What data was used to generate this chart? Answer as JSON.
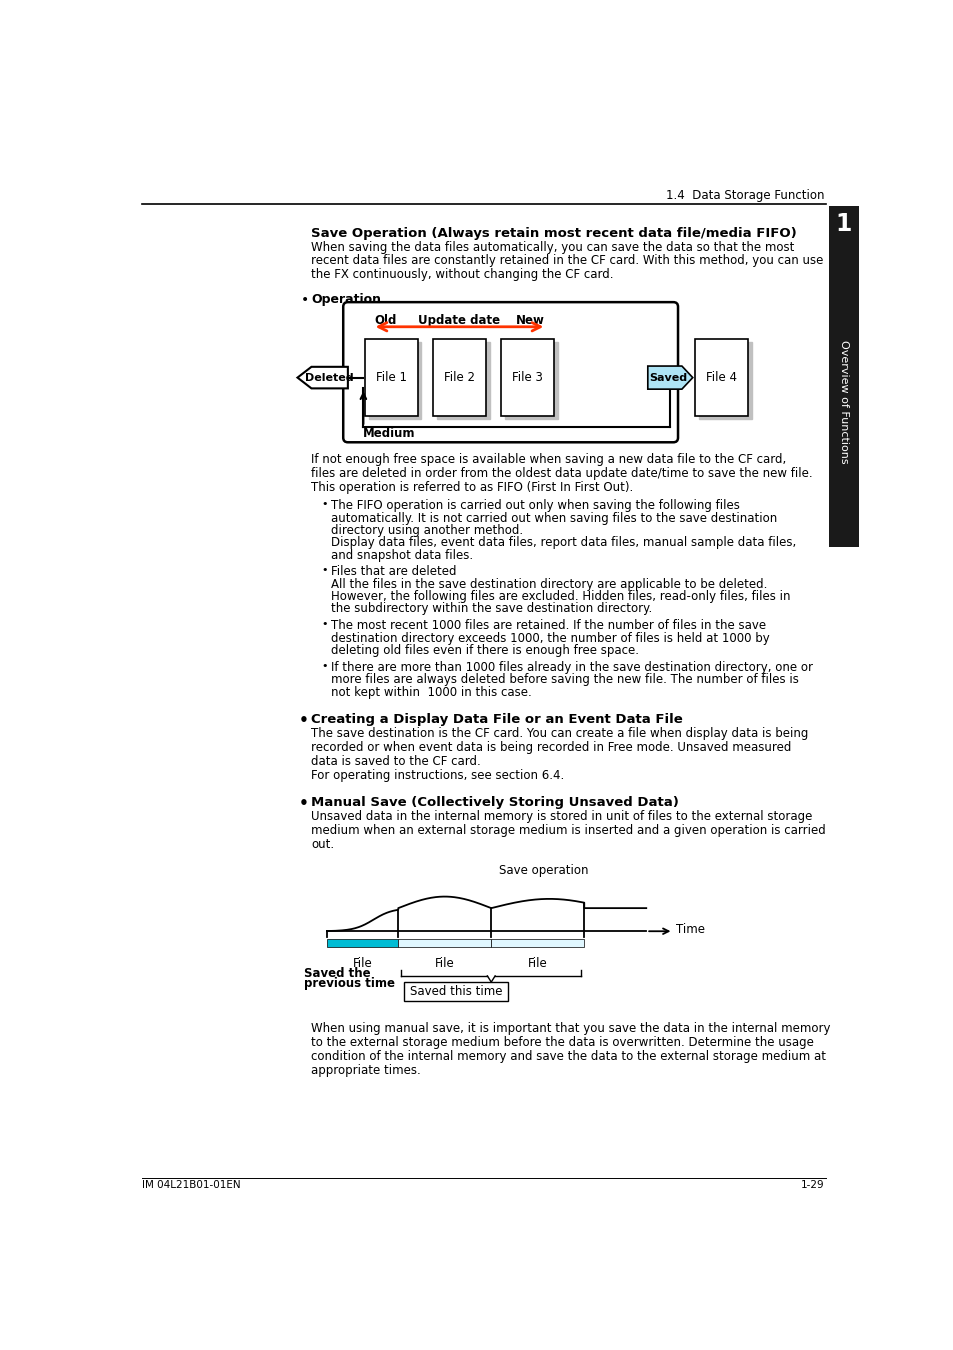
{
  "page_header": "1.4  Data Storage Function",
  "chapter_num": "1",
  "sidebar_text": "Overview of Functions",
  "footer_left": "IM 04L21B01-01EN",
  "footer_right": "1-29",
  "section1_title": "Save Operation (Always retain most recent data file/media FIFO)",
  "section1_body_lines": [
    "When saving the data files automatically, you can save the data so that the most",
    "recent data files are constantly retained in the CF card. With this method, you can use",
    "the FX continuously, without changing the CF card."
  ],
  "op_label": "Operation",
  "diagram1_deleted": "Deleted",
  "diagram1_saved": "Saved",
  "diagram1_medium": "Medium",
  "diagram1_old": "Old",
  "diagram1_update": "Update date",
  "diagram1_new": "New",
  "para1_lines": [
    "If not enough free space is available when saving a new data file to the CF card,",
    "files are deleted in order from the oldest data update date/time to save the new file.",
    "This operation is referred to as FIFO (First In First Out)."
  ],
  "bullet1_title": "The FIFO operation is carried out only when saving the following files",
  "bullet1_body_lines": [
    "automatically. It is not carried out when saving files to the save destination",
    "directory using another method.",
    "Display data files, event data files, report data files, manual sample data files,",
    "and snapshot data files."
  ],
  "bullet2_title": "Files that are deleted",
  "bullet2_body_lines": [
    "All the files in the save destination directory are applicable to be deleted.",
    "However, the following files are excluded. Hidden files, read-only files, files in",
    "the subdirectory within the save destination directory."
  ],
  "bullet3_body_lines": [
    "The most recent 1000 files are retained. If the number of files in the save",
    "destination directory exceeds 1000, the number of files is held at 1000 by",
    "deleting old files even if there is enough free space."
  ],
  "bullet4_body_lines": [
    "If there are more than 1000 files already in the save destination directory, one or",
    "more files are always deleted before saving the new file. The number of files is",
    "not kept within  1000 in this case."
  ],
  "section2_title": "Creating a Display Data File or an Event Data File",
  "section2_body_lines": [
    "The save destination is the CF card. You can create a file when display data is being",
    "recorded or when event data is being recorded in Free mode. Unsaved measured",
    "data is saved to the CF card.",
    "For operating instructions, see section 6.4."
  ],
  "section3_title": "Manual Save (Collectively Storing Unsaved Data)",
  "section3_body_lines": [
    "Unsaved data in the internal memory is stored in unit of files to the external storage",
    "medium when an external storage medium is inserted and a given operation is carried",
    "out."
  ],
  "diagram2_save_op": "Save operation",
  "diagram2_time": "Time",
  "diagram2_file": "File",
  "diagram2_saved_prev_line1": "Saved the",
  "diagram2_saved_prev_line2": "previous time",
  "diagram2_saved_this": "Saved this time",
  "para_final_lines": [
    "When using manual save, it is important that you save the data in the internal memory",
    "to the external storage medium before the data is overwritten. Determine the usage",
    "condition of the internal memory and save the data to the external storage medium at",
    "appropriate times."
  ],
  "bg_color": "#ffffff",
  "text_color": "#000000",
  "sidebar_bg": "#1a1a1a",
  "sidebar_text_color": "#ffffff",
  "arrow_color": "#ff3300",
  "box_fill": "#ffffff",
  "box_border": "#000000",
  "saved_fill": "#aee4f5",
  "shadow_color": "#c0c0c0",
  "cyan_bar_color": "#00bcd4"
}
